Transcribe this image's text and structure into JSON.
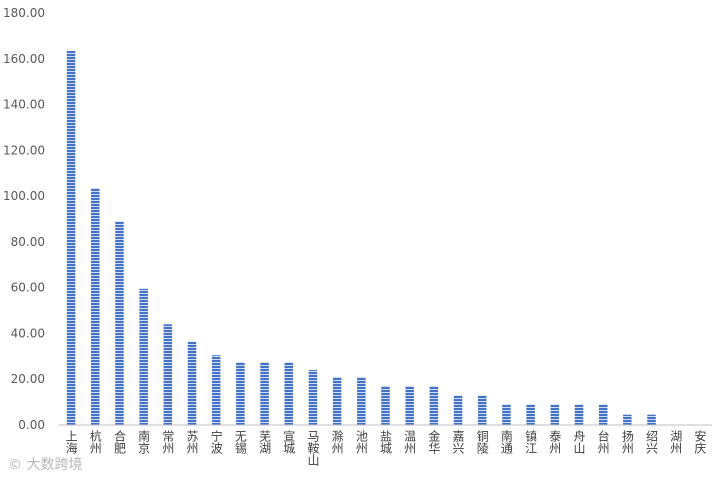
{
  "chart_data": {
    "type": "bar",
    "categories": [
      "上海",
      "杭州",
      "合肥",
      "南京",
      "常州",
      "苏州",
      "宁波",
      "无锡",
      "芜湖",
      "宣城",
      "马鞍山",
      "滁州",
      "池州",
      "盐城",
      "温州",
      "金华",
      "嘉兴",
      "铜陵",
      "南通",
      "镇江",
      "泰州",
      "舟山",
      "台州",
      "扬州",
      "绍兴",
      "湖州",
      "安庆"
    ],
    "values": [
      163.5,
      103.5,
      89,
      59.5,
      44,
      36.5,
      30.5,
      27.5,
      27.5,
      27.5,
      24,
      21,
      21,
      17,
      17,
      17,
      13,
      13,
      9,
      9,
      9,
      9,
      9,
      4.5,
      4.5,
      0,
      0
    ],
    "ylim": [
      0,
      180
    ],
    "yticks": [
      "0.00",
      "20.00",
      "40.00",
      "60.00",
      "80.00",
      "100.00",
      "120.00",
      "140.00",
      "160.00",
      "180.00"
    ],
    "grid": false,
    "colors": {
      "bar": "#4472c4",
      "stripe": "#ffffff"
    }
  },
  "watermark": "©  大数跨境"
}
